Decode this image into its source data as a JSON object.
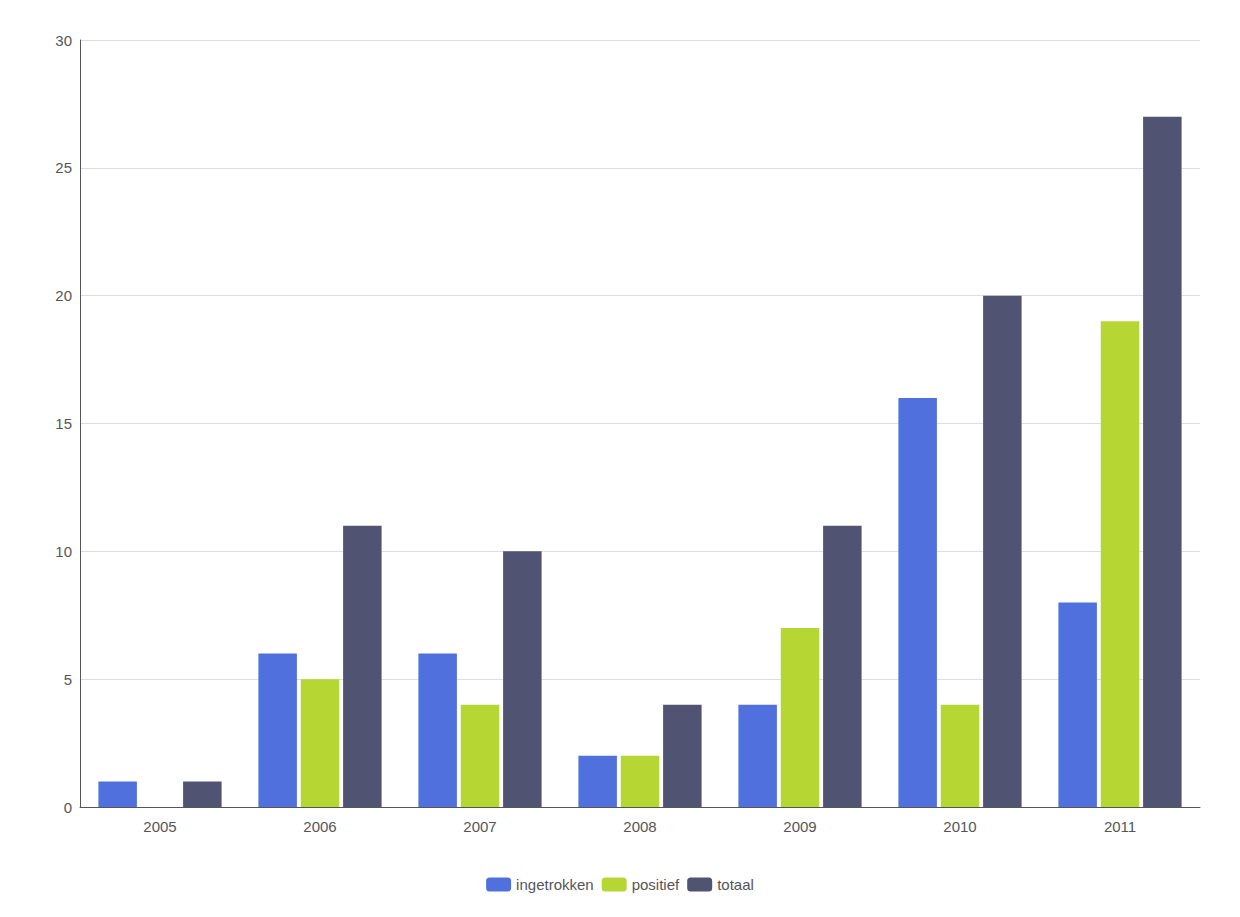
{
  "chart_data": {
    "type": "bar",
    "categories": [
      "2005",
      "2006",
      "2007",
      "2008",
      "2009",
      "2010",
      "2011"
    ],
    "series": [
      {
        "name": "ingetrokken",
        "values": [
          1,
          6,
          6,
          2,
          4,
          16,
          8
        ]
      },
      {
        "name": "positief",
        "values": [
          0,
          5,
          4,
          2,
          7,
          4,
          19
        ]
      },
      {
        "name": "totaal",
        "values": [
          1,
          11,
          10,
          4,
          11,
          20,
          27
        ]
      }
    ],
    "ylim": [
      0,
      30
    ],
    "yticks": [
      0,
      5,
      10,
      15,
      20,
      25,
      30
    ],
    "grid": true,
    "legend": "bottom"
  }
}
